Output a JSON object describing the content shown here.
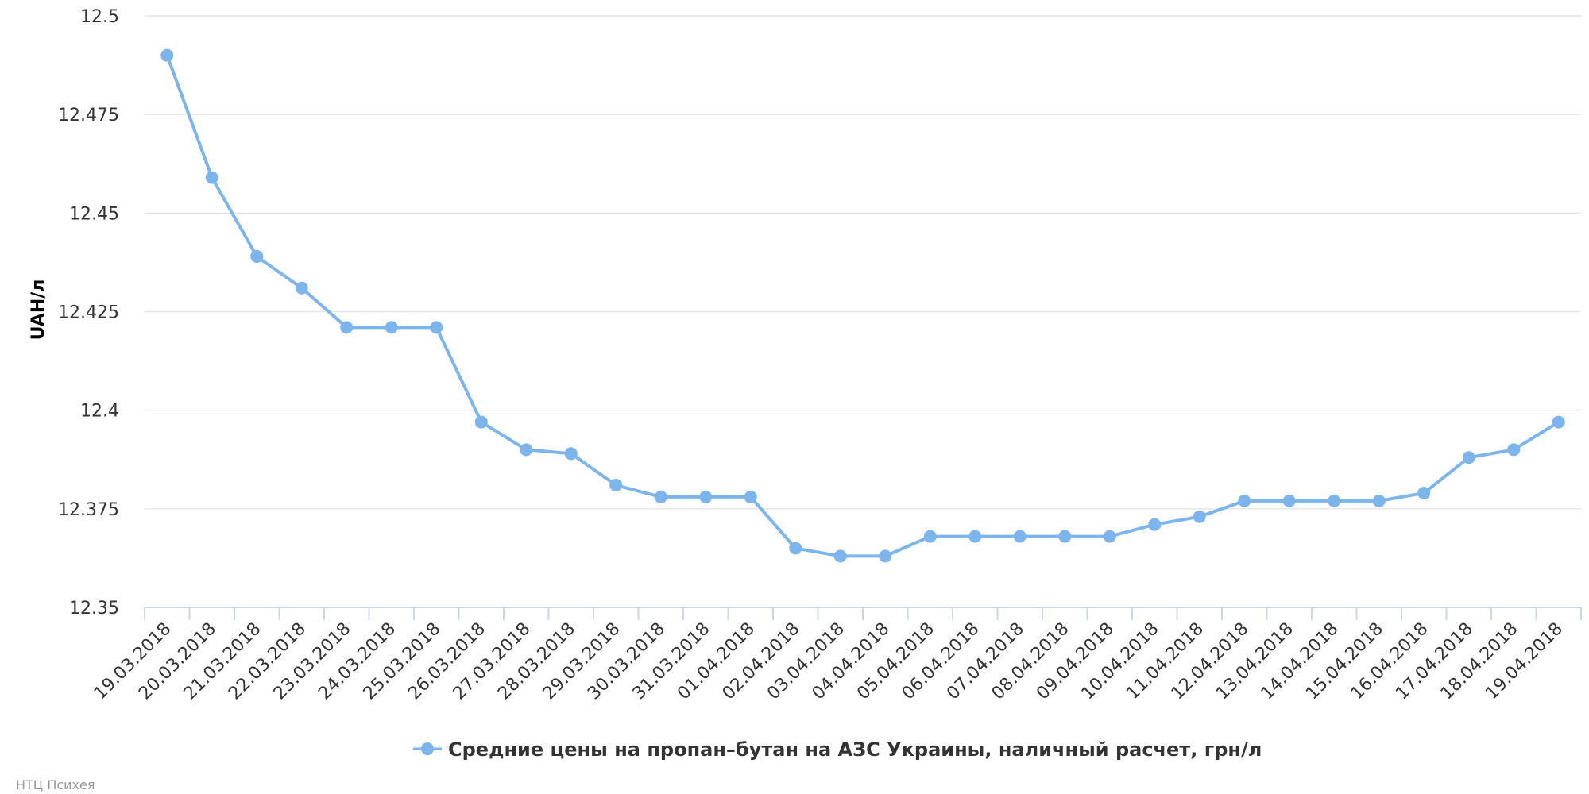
{
  "chart_data": {
    "type": "line",
    "title": "",
    "xlabel": "",
    "ylabel": "UAH/л",
    "ylim": [
      12.35,
      12.5
    ],
    "yticks": [
      "12.35",
      "12.375",
      "12.4",
      "12.425",
      "12.45",
      "12.475",
      "12.5"
    ],
    "grid": true,
    "legend_position": "bottom-center",
    "categories": [
      "19.03.2018",
      "20.03.2018",
      "21.03.2018",
      "22.03.2018",
      "23.03.2018",
      "24.03.2018",
      "25.03.2018",
      "26.03.2018",
      "27.03.2018",
      "28.03.2018",
      "29.03.2018",
      "30.03.2018",
      "31.03.2018",
      "01.04.2018",
      "02.04.2018",
      "03.04.2018",
      "04.04.2018",
      "05.04.2018",
      "06.04.2018",
      "07.04.2018",
      "08.04.2018",
      "09.04.2018",
      "10.04.2018",
      "11.04.2018",
      "12.04.2018",
      "13.04.2018",
      "14.04.2018",
      "15.04.2018",
      "16.04.2018",
      "17.04.2018",
      "18.04.2018",
      "19.04.2018"
    ],
    "series": [
      {
        "name": "Средние цены на пропан–бутан на АЗС Украины, наличный расчет, грн/л",
        "color": "#7cb5ec",
        "values": [
          12.49,
          12.459,
          12.439,
          12.431,
          12.421,
          12.421,
          12.421,
          12.397,
          12.39,
          12.389,
          12.381,
          12.378,
          12.378,
          12.378,
          12.365,
          12.363,
          12.363,
          12.368,
          12.368,
          12.368,
          12.368,
          12.368,
          12.371,
          12.373,
          12.377,
          12.377,
          12.377,
          12.377,
          12.379,
          12.388,
          12.39,
          12.397
        ]
      }
    ]
  },
  "credit": "НТЦ Психея"
}
